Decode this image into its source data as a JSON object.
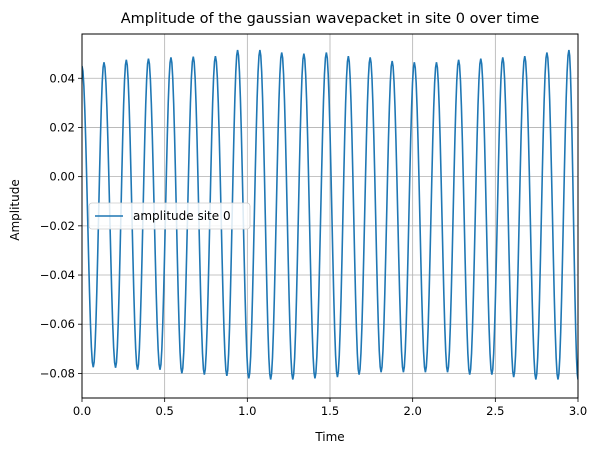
{
  "chart_data": {
    "type": "line",
    "title": "Amplitude of the gaussian wavepacket in site 0 over time",
    "xlabel": "Time",
    "ylabel": "Amplitude",
    "xlim": [
      0.0,
      3.0
    ],
    "ylim": [
      -0.09,
      0.058
    ],
    "xticks": [
      "0.0",
      "0.5",
      "1.0",
      "1.5",
      "2.0",
      "2.5",
      "3.0"
    ],
    "xtick_values": [
      0.0,
      0.5,
      1.0,
      1.5,
      2.0,
      2.5,
      3.0
    ],
    "yticks": [
      "0.04",
      "0.02",
      "0.00",
      "−0.02",
      "−0.04",
      "−0.06",
      "−0.08"
    ],
    "ytick_values": [
      0.04,
      0.02,
      0.0,
      -0.02,
      -0.04,
      -0.06,
      -0.08
    ],
    "grid": true,
    "legend": {
      "position": "center-left",
      "entries": [
        "amplitude site 0"
      ]
    },
    "series": [
      {
        "name": "amplitude site 0",
        "color": "#1f77b4",
        "start": {
          "x": 0.0,
          "y": 0.045
        },
        "x": [
          0.068,
          0.133,
          0.203,
          0.268,
          0.336,
          0.402,
          0.472,
          0.538,
          0.604,
          0.673,
          0.74,
          0.807,
          0.876,
          0.941,
          1.009,
          1.076,
          1.141,
          1.208,
          1.275,
          1.342,
          1.409,
          1.478,
          1.545,
          1.611,
          1.676,
          1.743,
          1.809,
          1.876,
          1.944,
          2.01,
          2.077,
          2.144,
          2.211,
          2.278,
          2.345,
          2.412,
          2.479,
          2.545,
          2.611,
          2.678,
          2.745,
          2.812,
          2.879,
          2.945
        ],
        "y": [
          -0.0775,
          0.0465,
          -0.0777,
          0.0475,
          -0.0785,
          0.048,
          -0.0785,
          0.0485,
          -0.08,
          0.0488,
          -0.0805,
          0.049,
          -0.081,
          0.0515,
          -0.082,
          0.0515,
          -0.0825,
          0.0505,
          -0.0825,
          0.05,
          -0.082,
          0.0505,
          -0.0815,
          0.049,
          -0.0805,
          0.0485,
          -0.0795,
          0.047,
          -0.0795,
          0.0465,
          -0.0795,
          0.0465,
          -0.0795,
          0.0475,
          -0.0805,
          0.048,
          -0.0805,
          0.0485,
          -0.0815,
          0.049,
          -0.0825,
          0.0505,
          -0.0825,
          0.0515
        ],
        "end": {
          "x": 3.0,
          "y": -0.0825
        }
      }
    ]
  }
}
